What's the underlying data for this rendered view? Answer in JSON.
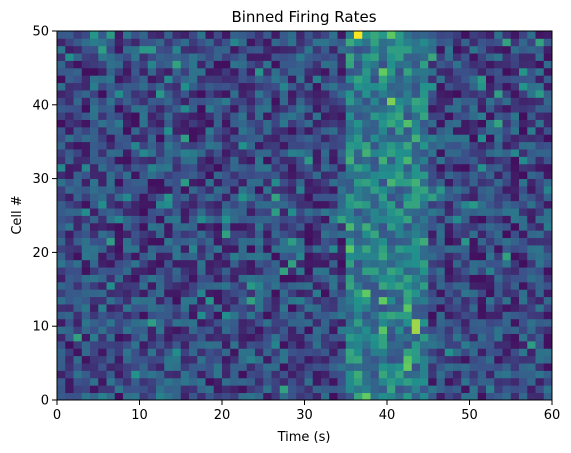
{
  "chart_data": {
    "type": "heatmap",
    "title": "Binned Firing Rates",
    "xlabel": "Time (s)",
    "ylabel": "Cell #",
    "xlim": [
      0,
      60
    ],
    "ylim": [
      0,
      50
    ],
    "x_ticks": [
      0,
      10,
      20,
      30,
      40,
      50,
      60
    ],
    "y_ticks": [
      0,
      10,
      20,
      30,
      40,
      50
    ],
    "x_tick_labels": [
      "0",
      "10",
      "20",
      "30",
      "40",
      "50",
      "60"
    ],
    "y_tick_labels": [
      "0",
      "10",
      "20",
      "30",
      "40",
      "50"
    ],
    "n_time_bins": 60,
    "n_cells": 50,
    "colormap": "viridis",
    "colormap_stops": [
      "#440154",
      "#3b528b",
      "#21918c",
      "#5ec962",
      "#fde725"
    ],
    "background_level": 0.22,
    "elevated_window": {
      "x": [
        35,
        45
      ],
      "level": 0.42
    },
    "hot_spots": [
      {
        "x": 36,
        "y": 49,
        "level": 1.0
      },
      {
        "x": 40,
        "y": 40,
        "level": 0.8
      },
      {
        "x": 43,
        "y": 9,
        "level": 0.85
      },
      {
        "x": 43,
        "y": 10,
        "level": 0.85
      },
      {
        "x": 45,
        "y": 46,
        "level": 0.6
      }
    ],
    "grid": false,
    "legend": "none"
  }
}
